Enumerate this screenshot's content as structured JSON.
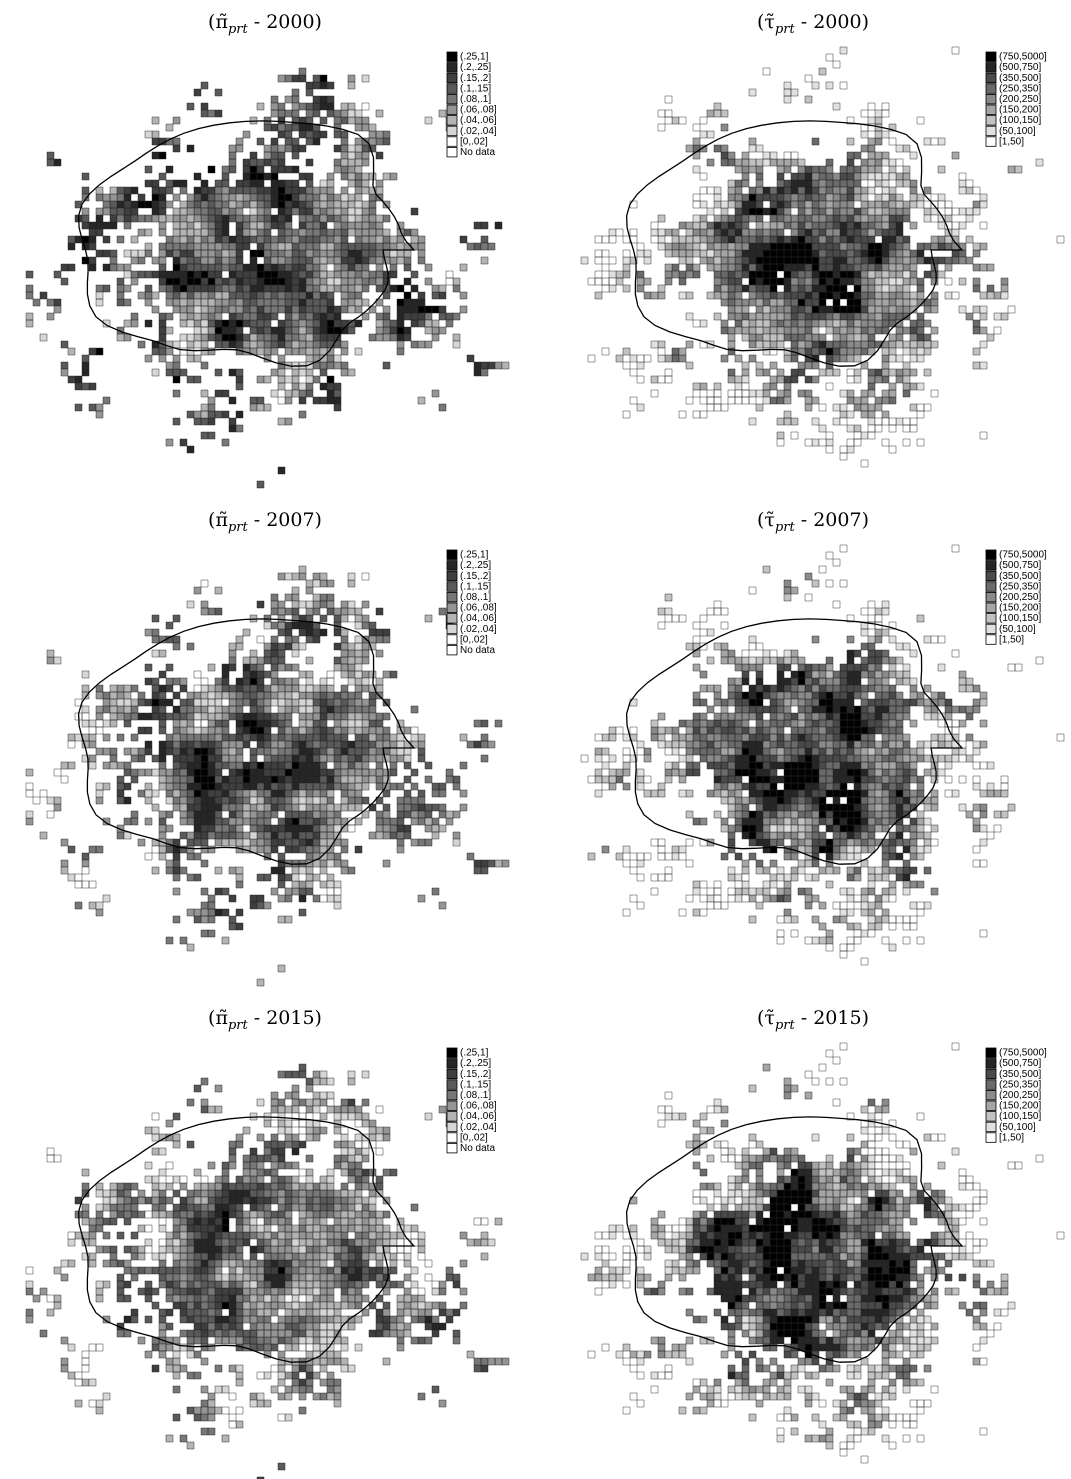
{
  "panels": [
    {
      "title": {
        "open": "(π̃",
        "sub": "prt",
        "close": " - 2000)"
      },
      "legend": {
        "labels": [
          "(.25,1]",
          "(.2,.25]",
          "(.15,.2]",
          "(.1,.15]",
          "(.08,.1]",
          "(.06,.08]",
          "(.04,.06]",
          "(.02,.04]",
          "[0,.02]",
          "No data"
        ],
        "colors": [
          "#000000",
          "#262626",
          "#3f3f3f",
          "#5a5a5a",
          "#777777",
          "#959595",
          "#b4b4b4",
          "#d6d6d6",
          "#ffffff",
          "#ffffff"
        ]
      }
    },
    {
      "title": {
        "open": "(τ̃",
        "sub": "prt",
        "close": " - 2000)"
      },
      "legend": {
        "labels": [
          "(750,5000]",
          "(500,750]",
          "(350,500]",
          "(250,350]",
          "(200,250]",
          "(150,200]",
          "(100,150]",
          "(50,100]",
          "[1,50]"
        ],
        "colors": [
          "#000000",
          "#262626",
          "#4a4a4a",
          "#6a6a6a",
          "#8a8a8a",
          "#a6a6a6",
          "#c2c2c2",
          "#e0e0e0",
          "#ffffff"
        ]
      }
    },
    {
      "title": {
        "open": "(π̃",
        "sub": "prt",
        "close": " - 2007)"
      },
      "legend": {
        "labels": [
          "(.25,1]",
          "(.2,.25]",
          "(.15,.2]",
          "(.1,.15]",
          "(.08,.1]",
          "(.06,.08]",
          "(.04,.06]",
          "(.02,.04]",
          "[0,.02]",
          "No data"
        ],
        "colors": [
          "#000000",
          "#262626",
          "#3f3f3f",
          "#5a5a5a",
          "#777777",
          "#959595",
          "#b4b4b4",
          "#d6d6d6",
          "#ffffff",
          "#ffffff"
        ]
      }
    },
    {
      "title": {
        "open": "(τ̃",
        "sub": "prt",
        "close": " - 2007)"
      },
      "legend": {
        "labels": [
          "(750,5000]",
          "(500,750]",
          "(350,500]",
          "(250,350]",
          "(200,250]",
          "(150,200]",
          "(100,150]",
          "(50,100]",
          "[1,50]"
        ],
        "colors": [
          "#000000",
          "#262626",
          "#4a4a4a",
          "#6a6a6a",
          "#8a8a8a",
          "#a6a6a6",
          "#c2c2c2",
          "#e0e0e0",
          "#ffffff"
        ]
      }
    },
    {
      "title": {
        "open": "(π̃",
        "sub": "prt",
        "close": " - 2015)"
      },
      "legend": {
        "labels": [
          "(.25,1]",
          "(.2,.25]",
          "(.15,.2]",
          "(.1,.15]",
          "(.08,.1]",
          "(.06,.08]",
          "(.04,.06]",
          "(.02,.04]",
          "[0,.02]",
          "No data"
        ],
        "colors": [
          "#000000",
          "#262626",
          "#3f3f3f",
          "#5a5a5a",
          "#777777",
          "#959595",
          "#b4b4b4",
          "#d6d6d6",
          "#ffffff",
          "#ffffff"
        ]
      }
    },
    {
      "title": {
        "open": "(τ̃",
        "sub": "prt",
        "close": " - 2015)"
      },
      "legend": {
        "labels": [
          "(750,5000]",
          "(500,750]",
          "(350,500]",
          "(250,350]",
          "(200,250]",
          "(150,200]",
          "(100,150]",
          "(50,100]",
          "[1,50]"
        ],
        "colors": [
          "#000000",
          "#262626",
          "#4a4a4a",
          "#6a6a6a",
          "#8a8a8a",
          "#a6a6a6",
          "#c2c2c2",
          "#e0e0e0",
          "#ffffff"
        ]
      }
    }
  ]
}
